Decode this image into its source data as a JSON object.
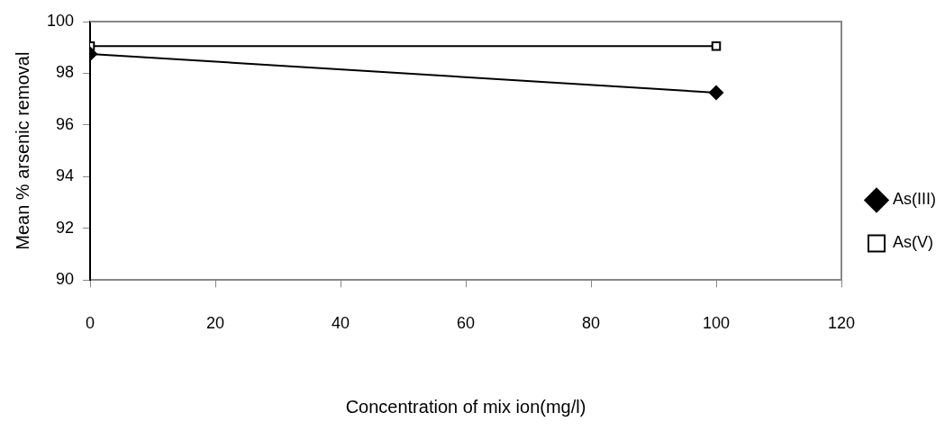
{
  "chart_data": {
    "type": "line",
    "xlabel": "Concentration of mix ion(mg/l)",
    "ylabel": "Mean % arsenic removal",
    "x": [
      0,
      100
    ],
    "series": [
      {
        "name": "As(III)",
        "color": "#000000",
        "marker": "diamond",
        "values": [
          98.75,
          97.25
        ]
      },
      {
        "name": "As(V)",
        "color": "#000000",
        "marker": "square",
        "values": [
          99.05,
          99.05
        ]
      }
    ],
    "xlim": [
      0,
      120
    ],
    "xticks": [
      0,
      20,
      40,
      60,
      80,
      100,
      120
    ],
    "ylim": [
      90,
      100
    ],
    "yticks": [
      90,
      92,
      94,
      96,
      98,
      100
    ],
    "grid": false,
    "legend": "right",
    "line_style": "solid"
  }
}
